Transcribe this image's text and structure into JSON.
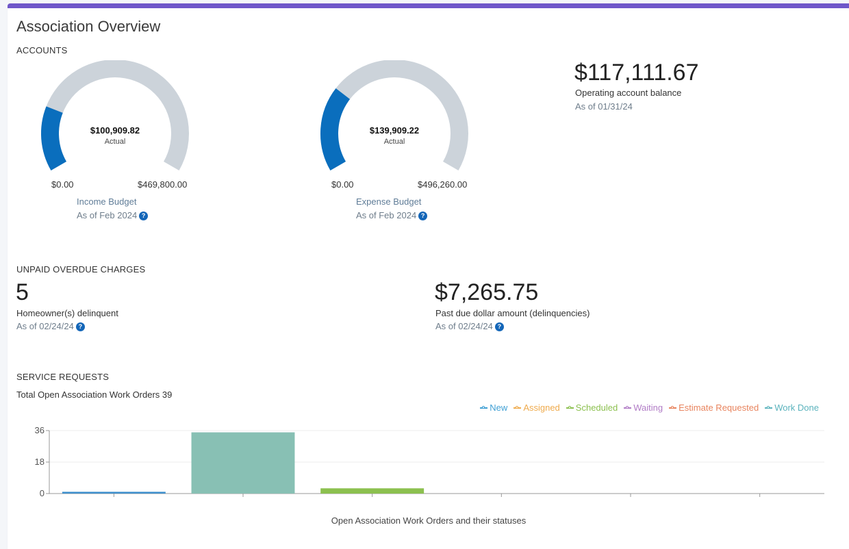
{
  "page": {
    "title": "Association Overview",
    "accent_color": "#6f57c9"
  },
  "accounts": {
    "section_label": "ACCOUNTS",
    "income_gauge": {
      "actual_value": "$100,909.82",
      "actual_label": "Actual",
      "min_label": "$0.00",
      "max_label": "$469,800.00",
      "fraction": 0.2148,
      "name": "Income Budget",
      "as_of": "As of Feb 2024",
      "fill_color": "#0a6ebd",
      "track_color": "#ccd3da"
    },
    "expense_gauge": {
      "actual_value": "$139,909.22",
      "actual_label": "Actual",
      "min_label": "$0.00",
      "max_label": "$496,260.00",
      "fraction": 0.2819,
      "name": "Expense Budget",
      "as_of": "As of Feb 2024",
      "fill_color": "#0a6ebd",
      "track_color": "#ccd3da"
    },
    "operating": {
      "value": "$117,111.67",
      "label": "Operating account balance",
      "as_of": "As of 01/31/24"
    }
  },
  "unpaid": {
    "section_label": "UNPAID OVERDUE CHARGES",
    "delinquent": {
      "value": "5",
      "label": "Homeowner(s) delinquent",
      "as_of": "As of 02/24/24"
    },
    "past_due": {
      "value": "$7,265.75",
      "label": "Past due dollar amount (delinquencies)",
      "as_of": "As of 02/24/24"
    }
  },
  "service_requests": {
    "section_label": "SERVICE REQUESTS",
    "total_label": "Total Open Association Work Orders 39"
  },
  "help_glyph": "?",
  "chart_data": {
    "type": "bar",
    "title": "",
    "xlabel": "Open Association Work Orders and their statuses",
    "ylabel": "",
    "ylim": [
      0,
      36
    ],
    "yticks": [
      0,
      18,
      36
    ],
    "grid": true,
    "legend_position": "top-right",
    "categories": [
      "New",
      "Assigned",
      "Scheduled",
      "Waiting",
      "Estimate Requested",
      "Work Done"
    ],
    "legend": [
      {
        "name": "New",
        "color": "#3f9fd4"
      },
      {
        "name": "Assigned",
        "color": "#efaa4c"
      },
      {
        "name": "Scheduled",
        "color": "#8cc04f"
      },
      {
        "name": "Waiting",
        "color": "#b17cc6"
      },
      {
        "name": "Estimate Requested",
        "color": "#e8845e"
      },
      {
        "name": "Work Done",
        "color": "#5bb3bd"
      }
    ],
    "bars": [
      {
        "value": 1,
        "color": "#3f8fcc"
      },
      {
        "value": 35,
        "color": "#88c0b4"
      },
      {
        "value": 3,
        "color": "#8cc04f"
      },
      {
        "value": 0,
        "color": "#b17cc6"
      },
      {
        "value": 0,
        "color": "#e8845e"
      },
      {
        "value": 0,
        "color": "#5bb3bd"
      }
    ]
  }
}
